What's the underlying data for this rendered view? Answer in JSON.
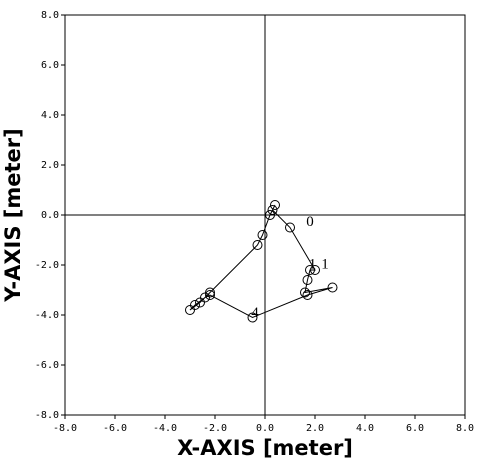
{
  "chart_data": {
    "type": "line",
    "x_label": "X-AXIS [meter]",
    "y_label": "Y-AXIS [meter]",
    "xlim": [
      -8,
      8
    ],
    "ylim": [
      -8,
      8
    ],
    "xticks": [
      {
        "value": -8,
        "label": "-8.0"
      },
      {
        "value": -6,
        "label": "-6.0"
      },
      {
        "value": -4,
        "label": "-4.0"
      },
      {
        "value": -2,
        "label": "-2.0"
      },
      {
        "value": 0,
        "label": "0.0"
      },
      {
        "value": 2,
        "label": "2.0"
      },
      {
        "value": 4,
        "label": "4.0"
      },
      {
        "value": 6,
        "label": "6.0"
      },
      {
        "value": 8,
        "label": "8.0"
      }
    ],
    "yticks": [
      {
        "value": -8,
        "label": "-8.0"
      },
      {
        "value": -6,
        "label": "-6.0"
      },
      {
        "value": -4,
        "label": "-4.0"
      },
      {
        "value": -2,
        "label": "-2.0"
      },
      {
        "value": 0,
        "label": "0.0"
      },
      {
        "value": 2,
        "label": "2.0"
      },
      {
        "value": 4,
        "label": "4.0"
      },
      {
        "value": 6,
        "label": "6.0"
      },
      {
        "value": 8,
        "label": "8.0"
      }
    ],
    "color": "#000000",
    "x": [
      0.3,
      1.0,
      2.0,
      1.8,
      1.7,
      1.6,
      2.7,
      1.7,
      -0.5,
      -2.2,
      -2.4,
      -2.8,
      -3.0,
      -2.6,
      -2.2,
      -0.3,
      -0.1,
      0.2,
      0.4
    ],
    "y": [
      0.2,
      -0.5,
      -2.2,
      -2.2,
      -2.6,
      -3.1,
      -2.9,
      -3.2,
      -4.1,
      -3.2,
      -3.3,
      -3.6,
      -3.8,
      -3.5,
      -3.1,
      -1.2,
      -0.8,
      0.0,
      0.4
    ],
    "annotations": [
      {
        "text": "0",
        "x": 1.8,
        "y": -0.3
      },
      {
        "text": "1",
        "x": 1.9,
        "y": -2.0
      },
      {
        "text": "1",
        "x": 2.4,
        "y": -2.0
      },
      {
        "text": "4",
        "x": -0.4,
        "y": -3.95
      }
    ]
  }
}
